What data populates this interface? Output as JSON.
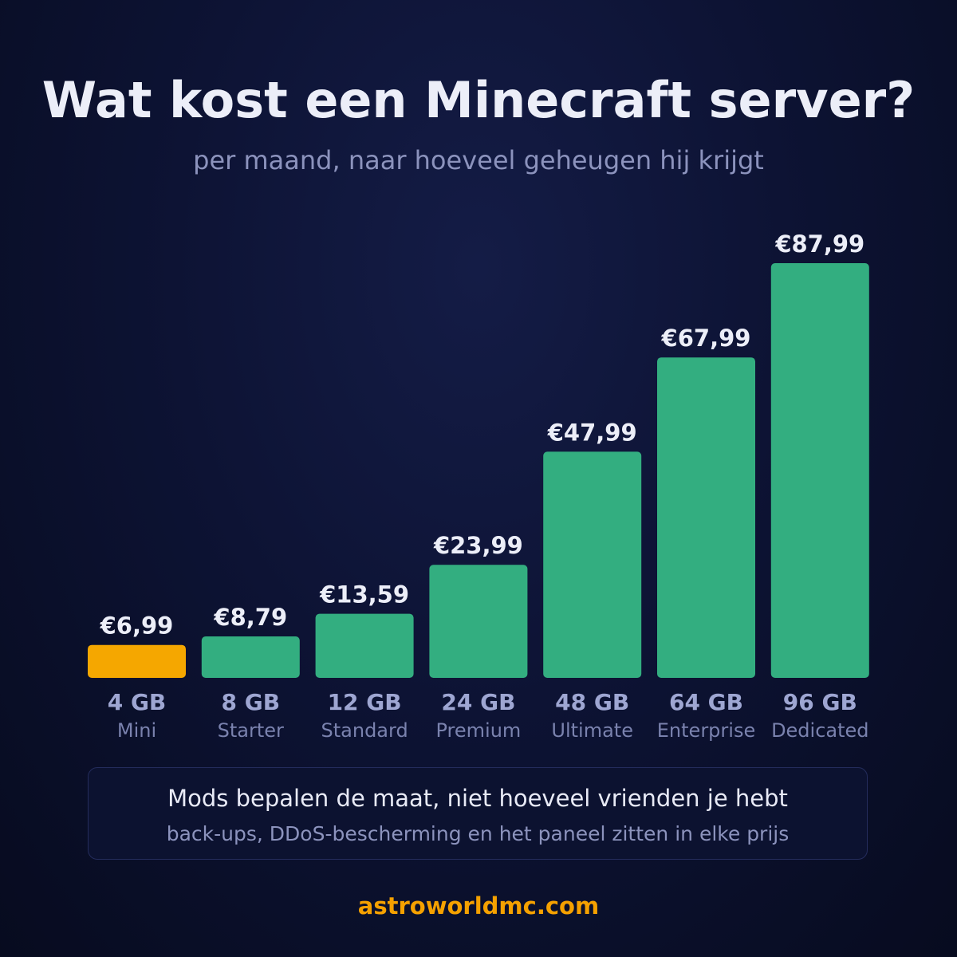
{
  "title": "Wat kost een Minecraft server?",
  "subtitle": "per maand, naar hoeveel geheugen hij krijgt",
  "chart_data": {
    "type": "bar",
    "categories": [
      "4 GB",
      "8 GB",
      "12 GB",
      "24 GB",
      "48 GB",
      "64 GB",
      "96 GB"
    ],
    "plan_names": [
      "Mini",
      "Starter",
      "Standard",
      "Premium",
      "Ultimate",
      "Enterprise",
      "Dedicated"
    ],
    "values": [
      6.99,
      8.79,
      13.59,
      23.99,
      47.99,
      67.99,
      87.99
    ],
    "value_labels": [
      "€6,99",
      "€8,79",
      "€13,59",
      "€23,99",
      "€47,99",
      "€67,99",
      "€87,99"
    ],
    "highlight_index": 0,
    "colors": {
      "bar": "#33ae80",
      "highlight": "#f5a700"
    },
    "grid": false
  },
  "info": {
    "main": "Mods bepalen de maat, niet hoeveel vrienden je hebt",
    "sub": "back-ups, DDoS-bescherming en het paneel zitten in elke prijs"
  },
  "footer": "astroworldmc.com"
}
